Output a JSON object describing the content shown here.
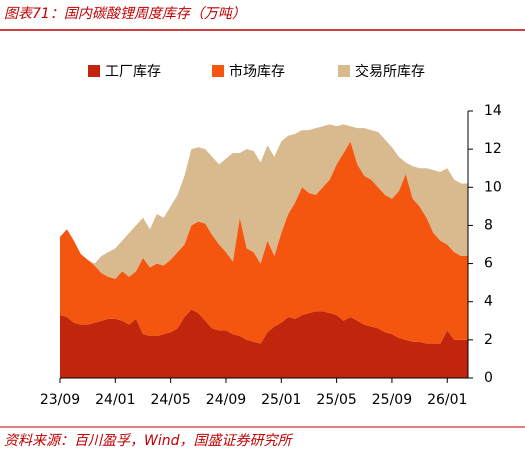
{
  "title": "图表71：国内碳酸锂周度库存（万吨）",
  "source": "资料来源：百川盈孚，Wind，国盛证券研究所",
  "chart_data": {
    "type": "stacked_area",
    "categories": [
      "23/09",
      null,
      null,
      null,
      null,
      null,
      null,
      null,
      "24/01",
      null,
      null,
      null,
      null,
      null,
      null,
      null,
      "24/05",
      null,
      null,
      null,
      null,
      null,
      null,
      null,
      "24/09",
      null,
      null,
      null,
      null,
      null,
      null,
      null,
      "25/01",
      null,
      null,
      null,
      null,
      null,
      null,
      null,
      "25/05",
      null,
      null,
      null,
      null,
      null,
      null,
      null,
      "25/09",
      null,
      null,
      null,
      null,
      null,
      null,
      null,
      "26/01",
      null,
      null,
      null
    ],
    "series": [
      {
        "name": "工厂库存",
        "color": "#c1260c",
        "values": [
          3.3,
          3.2,
          2.9,
          2.8,
          2.8,
          2.9,
          3.0,
          3.1,
          3.1,
          3.0,
          2.8,
          3.1,
          2.3,
          2.2,
          2.2,
          2.3,
          2.4,
          2.6,
          3.2,
          3.6,
          3.4,
          3.0,
          2.6,
          2.5,
          2.5,
          2.3,
          2.2,
          2.0,
          1.9,
          1.8,
          2.4,
          2.7,
          2.9,
          3.2,
          3.1,
          3.3,
          3.4,
          3.5,
          3.5,
          3.4,
          3.3,
          3.0,
          3.2,
          3.0,
          2.8,
          2.7,
          2.6,
          2.4,
          2.3,
          2.1,
          2.0,
          1.9,
          1.9,
          1.8,
          1.8,
          1.8,
          2.5,
          2.0,
          2.0,
          2.0
        ]
      },
      {
        "name": "市场库存",
        "color": "#f4550f",
        "values": [
          4.1,
          4.6,
          4.3,
          3.7,
          3.4,
          3.0,
          2.5,
          2.2,
          2.1,
          2.6,
          2.5,
          2.5,
          4.0,
          3.6,
          3.8,
          3.6,
          3.8,
          4.0,
          3.8,
          4.4,
          4.8,
          5.1,
          4.9,
          4.5,
          4.1,
          3.8,
          6.2,
          4.8,
          4.7,
          4.2,
          4.8,
          3.7,
          4.7,
          5.4,
          6.1,
          6.7,
          6.3,
          6.1,
          6.5,
          7.0,
          7.9,
          8.8,
          9.2,
          8.2,
          7.8,
          7.7,
          7.4,
          7.2,
          7.1,
          7.7,
          8.7,
          7.5,
          7.1,
          6.6,
          5.8,
          5.4,
          4.5,
          4.6,
          4.4,
          4.4
        ]
      },
      {
        "name": "交易所库存",
        "color": "#d9b98e",
        "values": [
          0,
          0,
          0,
          0,
          0,
          0.1,
          0.9,
          1.3,
          1.6,
          1.6,
          2.3,
          2.4,
          2.1,
          2.0,
          2.6,
          2.5,
          2.8,
          3.0,
          3.6,
          4.0,
          3.9,
          3.9,
          4.1,
          4.2,
          4.9,
          5.7,
          3.4,
          5.2,
          5.3,
          5.3,
          5.0,
          5.2,
          4.8,
          4.1,
          3.6,
          3.0,
          3.3,
          3.5,
          3.2,
          2.9,
          2.0,
          1.5,
          0.8,
          1.9,
          2.5,
          2.6,
          2.9,
          2.9,
          2.7,
          1.8,
          0.6,
          1.7,
          2.0,
          2.6,
          3.3,
          3.6,
          4.0,
          3.8,
          3.8,
          3.8
        ]
      }
    ],
    "ylim": [
      0,
      14
    ],
    "yticks": [
      0,
      2,
      4,
      6,
      8,
      10,
      12,
      14
    ]
  }
}
